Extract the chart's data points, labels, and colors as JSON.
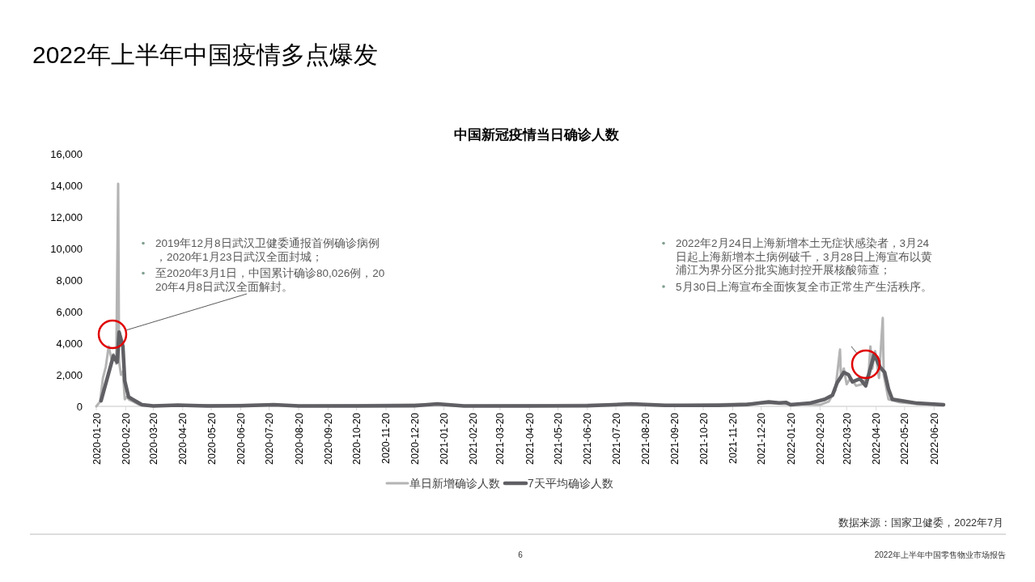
{
  "chart_data": {
    "type": "line",
    "title": "2022年上半年中国疫情多点爆发",
    "subtitle": "中国新冠疫情当日确诊人数",
    "xlim": [
      "2020-01-20",
      "2022-06-30"
    ],
    "xticks": [
      "2020-01-20",
      "2020-02-20",
      "2020-03-20",
      "2020-04-20",
      "2020-05-20",
      "2020-06-20",
      "2020-07-20",
      "2020-08-20",
      "2020-09-20",
      "2020-10-20",
      "2020-11-20",
      "2020-12-20",
      "2021-01-20",
      "2021-02-20",
      "2021-03-20",
      "2021-04-20",
      "2021-05-20",
      "2021-06-20",
      "2021-07-20",
      "2021-08-20",
      "2021-09-20",
      "2021-10-20",
      "2021-11-20",
      "2021-12-20",
      "2022-01-20",
      "2022-02-20",
      "2022-03-20",
      "2022-04-20",
      "2022-05-20",
      "2022-06-20"
    ],
    "ylim": [
      0,
      16000
    ],
    "yticks": [
      {
        "value": 0,
        "label": "0"
      },
      {
        "value": 2000,
        "label": "2,000"
      },
      {
        "value": 4000,
        "label": "4,000"
      },
      {
        "value": 6000,
        "label": "6,000"
      },
      {
        "value": 8000,
        "label": "8,000"
      },
      {
        "value": 10000,
        "label": "10,000"
      },
      {
        "value": 12000,
        "label": "12,000"
      },
      {
        "value": 14000,
        "label": "14,000"
      },
      {
        "value": 16000,
        "label": "16,000"
      }
    ],
    "grid": false,
    "legend": "bottom",
    "marker": "none",
    "line_style": "solid",
    "series": [
      {
        "name": "单日新增确诊人数",
        "color": "#b4b4b4",
        "x": [
          "2020-01-20",
          "2020-01-24",
          "2020-01-27",
          "2020-01-30",
          "2020-02-02",
          "2020-02-05",
          "2020-02-07",
          "2020-02-10",
          "2020-02-12",
          "2020-02-13",
          "2020-02-15",
          "2020-02-17",
          "2020-02-19",
          "2020-02-21",
          "2020-02-24",
          "2020-02-28",
          "2020-03-05",
          "2020-03-15",
          "2020-07-25",
          "2020-08-20",
          "2021-01-13",
          "2021-02-10",
          "2021-08-05",
          "2021-09-10",
          "2021-12-28",
          "2022-01-10",
          "2022-02-20",
          "2022-03-01",
          "2022-03-08",
          "2022-03-13",
          "2022-03-14",
          "2022-03-17",
          "2022-03-20",
          "2022-03-24",
          "2022-03-30",
          "2022-04-05",
          "2022-04-12",
          "2022-04-14",
          "2022-04-16",
          "2022-04-19",
          "2022-04-23",
          "2022-04-27",
          "2022-04-28",
          "2022-05-03",
          "2022-05-15",
          "2022-06-01",
          "2022-06-30"
        ],
        "values": [
          0,
          300,
          1800,
          2500,
          3800,
          3000,
          3300,
          2700,
          14100,
          2800,
          2000,
          2200,
          450,
          600,
          400,
          300,
          100,
          30,
          100,
          30,
          130,
          30,
          120,
          50,
          200,
          150,
          100,
          300,
          1000,
          3600,
          1800,
          2400,
          1400,
          1800,
          1300,
          1400,
          2000,
          3800,
          2400,
          3500,
          1800,
          5600,
          2000,
          450,
          250,
          150,
          80
        ]
      },
      {
        "name": "7天平均确诊人数",
        "color": "#5f5f64",
        "x": [
          "2020-01-25",
          "2020-02-07",
          "2020-02-11",
          "2020-02-13",
          "2020-02-17",
          "2020-02-19",
          "2020-02-23",
          "2020-02-27",
          "2020-03-08",
          "2020-03-20",
          "2020-04-15",
          "2020-05-20",
          "2020-06-20",
          "2020-07-25",
          "2020-08-20",
          "2020-10-20",
          "2020-12-20",
          "2021-01-13",
          "2021-02-10",
          "2021-04-20",
          "2021-06-20",
          "2021-08-05",
          "2021-09-10",
          "2021-11-05",
          "2021-12-05",
          "2021-12-28",
          "2022-01-08",
          "2022-01-15",
          "2022-01-20",
          "2022-02-09",
          "2022-02-25",
          "2022-03-05",
          "2022-03-10",
          "2022-03-17",
          "2022-03-22",
          "2022-03-26",
          "2022-04-03",
          "2022-04-09",
          "2022-04-18",
          "2022-04-24",
          "2022-04-29",
          "2022-05-03",
          "2022-05-07",
          "2022-06-02",
          "2022-06-30"
        ],
        "values": [
          350,
          3200,
          2800,
          4700,
          3800,
          1600,
          600,
          450,
          100,
          20,
          80,
          20,
          40,
          100,
          30,
          30,
          40,
          150,
          30,
          30,
          40,
          150,
          60,
          60,
          120,
          280,
          220,
          250,
          100,
          200,
          450,
          700,
          1500,
          2150,
          2000,
          1550,
          1750,
          1300,
          3300,
          2500,
          2150,
          1100,
          450,
          200,
          100
        ]
      }
    ],
    "annotations": [
      "2019年12月8日武汉卫健委通报首例确诊病例，2020年1月23日武汉全面封城；",
      "至2020年3月1日，中国累计确诊80,026例，2020年4月8日武汉全面解封。",
      "2022年2月24日上海新增本土无症状感染者，3月24日起上海新增本土病例破千，3月28日上海宣布以黄浦江为界分区分批实施封控开展核酸筛查；",
      "5月30日上海宣布全面恢复全市正常生产生活秩序。",
      "数据来源：国家卫健委，2022年7月",
      "6",
      "2022年上半年中国零售物业市场报告"
    ]
  }
}
